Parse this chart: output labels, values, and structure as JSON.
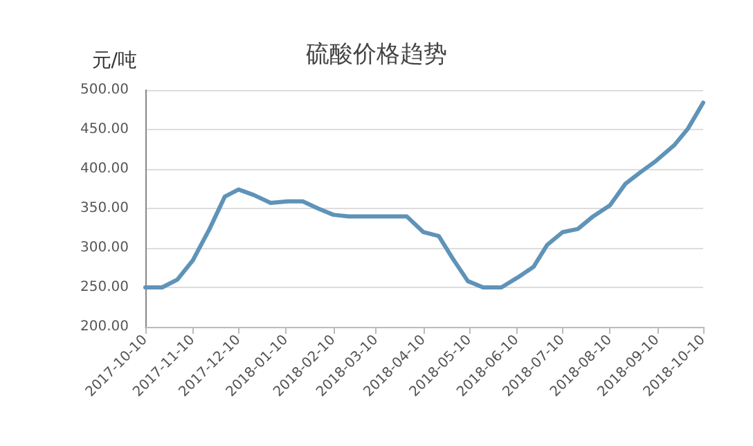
{
  "chart_data": {
    "type": "line",
    "title": "硫酸价格趋势",
    "ylabel": "元/吨",
    "x": [
      "2017-10-10",
      "2017-10-21",
      "2017-10-31",
      "2017-11-10",
      "2017-11-21",
      "2017-12-01",
      "2017-12-10",
      "2017-12-20",
      "2017-12-31",
      "2018-01-11",
      "2018-01-21",
      "2018-01-31",
      "2018-02-10",
      "2018-02-20",
      "2018-03-03",
      "2018-03-14",
      "2018-03-30",
      "2018-04-10",
      "2018-04-20",
      "2018-04-29",
      "2018-05-09",
      "2018-05-19",
      "2018-05-31",
      "2018-06-11",
      "2018-06-21",
      "2018-06-30",
      "2018-07-10",
      "2018-07-20",
      "2018-07-30",
      "2018-08-10",
      "2018-08-20",
      "2018-08-30",
      "2018-09-09",
      "2018-09-21",
      "2018-09-30",
      "2018-10-10"
    ],
    "series": [
      {
        "color": "#5f93b8",
        "values": [
          250,
          250,
          260,
          284,
          324,
          365,
          374,
          367,
          357,
          359,
          359,
          350,
          342,
          340,
          340,
          340,
          340,
          320,
          315,
          287,
          258,
          250,
          250,
          263,
          276,
          304,
          320,
          324,
          340,
          354,
          381,
          396,
          410,
          430,
          451,
          484
        ]
      }
    ],
    "xlim": [
      "2017-10-10",
      "2018-10-10"
    ],
    "xticks": [
      "2017-10-10",
      "2017-11-10",
      "2017-12-10",
      "2018-01-10",
      "2018-02-10",
      "2018-03-10",
      "2018-04-10",
      "2018-05-10",
      "2018-06-10",
      "2018-07-10",
      "2018-08-10",
      "2018-09-10",
      "2018-10-10"
    ],
    "ylim": [
      200,
      500
    ],
    "yticks": [
      {
        "value": 200,
        "label": "200.00"
      },
      {
        "value": 250,
        "label": "250.00"
      },
      {
        "value": 300,
        "label": "300.00"
      },
      {
        "value": 350,
        "label": "350.00"
      },
      {
        "value": 400,
        "label": "400.00"
      },
      {
        "value": 450,
        "label": "450.00"
      },
      {
        "value": 500,
        "label": "500.00"
      }
    ],
    "grid": "y",
    "marker": "none",
    "line_style": "solid"
  }
}
